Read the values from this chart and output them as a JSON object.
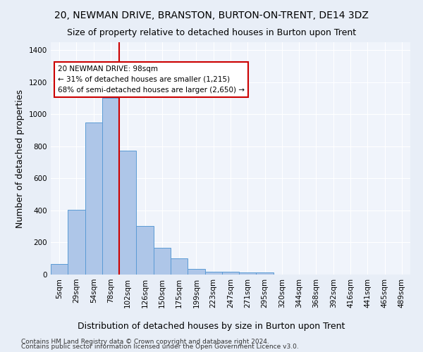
{
  "title1": "20, NEWMAN DRIVE, BRANSTON, BURTON-ON-TRENT, DE14 3DZ",
  "title2": "Size of property relative to detached houses in Burton upon Trent",
  "xlabel": "Distribution of detached houses by size in Burton upon Trent",
  "ylabel": "Number of detached properties",
  "footnote1": "Contains HM Land Registry data © Crown copyright and database right 2024.",
  "footnote2": "Contains public sector information licensed under the Open Government Licence v3.0.",
  "bar_labels": [
    "5sqm",
    "29sqm",
    "54sqm",
    "78sqm",
    "102sqm",
    "126sqm",
    "150sqm",
    "175sqm",
    "199sqm",
    "223sqm",
    "247sqm",
    "271sqm",
    "295sqm",
    "320sqm",
    "344sqm",
    "368sqm",
    "392sqm",
    "416sqm",
    "441sqm",
    "465sqm",
    "489sqm"
  ],
  "bar_values": [
    65,
    405,
    950,
    1105,
    775,
    305,
    165,
    100,
    35,
    18,
    18,
    12,
    12,
    0,
    0,
    0,
    0,
    0,
    0,
    0,
    0
  ],
  "bar_color": "#aec6e8",
  "bar_edgecolor": "#5b9bd5",
  "vline_color": "#cc0000",
  "annotation_text": "20 NEWMAN DRIVE: 98sqm\n← 31% of detached houses are smaller (1,215)\n68% of semi-detached houses are larger (2,650) →",
  "annotation_box_color": "#ffffff",
  "annotation_box_edgecolor": "#cc0000",
  "ylim": [
    0,
    1450
  ],
  "yticks": [
    0,
    200,
    400,
    600,
    800,
    1000,
    1200,
    1400
  ],
  "bg_color": "#e8eef7",
  "plot_bg_color": "#f0f4fb",
  "title1_fontsize": 10,
  "title2_fontsize": 9,
  "xlabel_fontsize": 9,
  "ylabel_fontsize": 9,
  "tick_fontsize": 7.5,
  "annotation_fontsize": 7.5,
  "footnote_fontsize": 6.5
}
